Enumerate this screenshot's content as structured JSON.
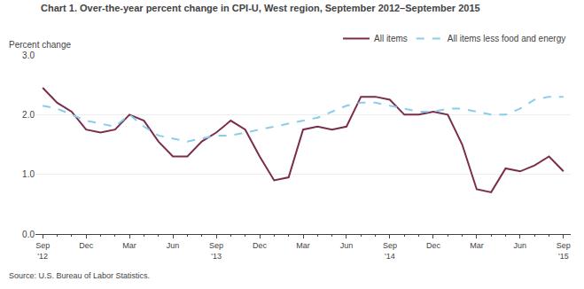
{
  "chart_data": {
    "type": "line",
    "title": "Chart 1. Over-the-year percent change in CPI-U, West region, September 2012–September 2015",
    "ylabel": "Percent change",
    "source": "Source: U.S. Bureau of Labor Statistics.",
    "categories": [
      "Sep\n'12",
      null,
      null,
      "Dec",
      null,
      null,
      "Mar",
      null,
      null,
      "Jun",
      null,
      null,
      "Sep\n'13",
      null,
      null,
      "Dec",
      null,
      null,
      "Mar",
      null,
      null,
      "Jun",
      null,
      null,
      "Sep\n'14",
      null,
      null,
      "Dec",
      null,
      null,
      "Mar",
      null,
      null,
      "Jun",
      null,
      null,
      "Sep\n'15"
    ],
    "series": [
      {
        "name": "All items",
        "color": "#7b2d4e",
        "line_style": "solid",
        "values": [
          2.45,
          2.2,
          2.05,
          1.75,
          1.7,
          1.75,
          2.0,
          1.9,
          1.55,
          1.3,
          1.3,
          1.55,
          1.7,
          1.9,
          1.75,
          1.3,
          0.9,
          0.95,
          1.75,
          1.8,
          1.75,
          1.8,
          2.3,
          2.3,
          2.25,
          2.0,
          2.0,
          2.05,
          2.0,
          1.5,
          0.75,
          0.7,
          1.1,
          1.05,
          1.15,
          1.3,
          1.05
        ]
      },
      {
        "name": "All items less food and energy",
        "color": "#87ceeb",
        "line_style": "dashed",
        "values": [
          2.15,
          2.1,
          2.0,
          1.9,
          1.85,
          1.8,
          2.0,
          1.8,
          1.65,
          1.6,
          1.55,
          1.6,
          1.65,
          1.65,
          1.7,
          1.75,
          1.8,
          1.85,
          1.9,
          1.95,
          2.05,
          2.15,
          2.2,
          2.2,
          2.15,
          2.1,
          2.05,
          2.05,
          2.1,
          2.1,
          2.05,
          2.0,
          2.0,
          2.1,
          2.25,
          2.3,
          2.3
        ]
      }
    ],
    "ylim": [
      0.0,
      3.0
    ],
    "yticks": [
      {
        "value": 0.0,
        "label": "0.0"
      },
      {
        "value": 1.0,
        "label": "1.0"
      },
      {
        "value": 2.0,
        "label": "2.0"
      },
      {
        "value": 3.0,
        "label": "3.0"
      }
    ],
    "grid": true,
    "legend": "upper right"
  }
}
